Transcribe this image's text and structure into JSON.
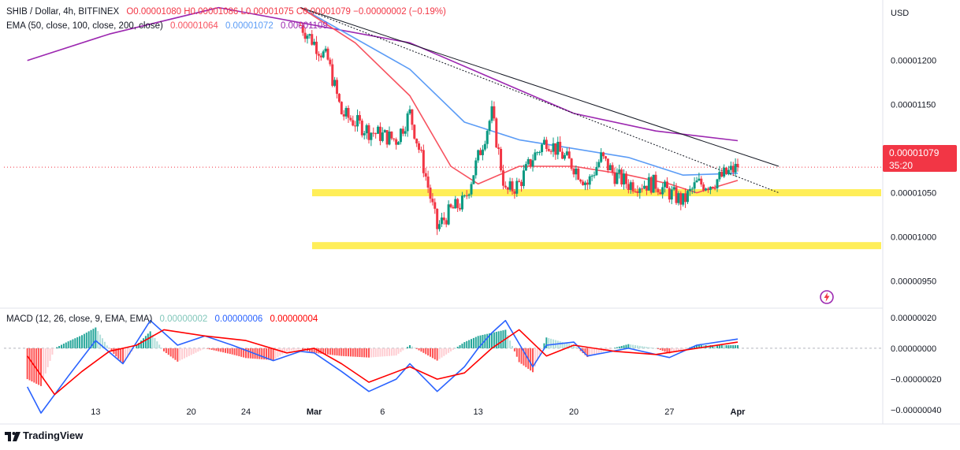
{
  "legend": {
    "symbol": "SHIB / Dollar, 4h, BITFINEX",
    "ohlc": "O0.00001080  H0.00001086  L0.00001075  C0.00001079  −0.00000002 (−0.19%)",
    "ema_label": "EMA (50, close, 100, close, 200, close)",
    "ema50": "0.00001064",
    "ema100": "0.00001072",
    "ema200": "0.00001109",
    "macd_label": "MACD (12, 26, close, 9, EMA, EMA)",
    "macd_hist": "0.00000002",
    "macd_line": "0.00000006",
    "macd_signal": "0.00000004"
  },
  "price_badge": {
    "price": "0.00001079",
    "countdown": "35:20"
  },
  "brand": "TradingView",
  "colors": {
    "up": "#089981",
    "down": "#f23645",
    "ema50": "#f7525f",
    "ema100": "#5b9cf6",
    "ema200": "#9c27b0",
    "macd": "#2962ff",
    "signal": "#ff0000",
    "zone": "#ffeb3b",
    "flash": "#9c27b0"
  },
  "icons": {
    "flash": "flash-icon",
    "logo": "tradingview-logo-icon"
  },
  "chart_data": [
    {
      "type": "candlestick",
      "currency": "USD",
      "y_ticks": [
        "0.00001200",
        "0.00001150",
        "0.00001100",
        "0.00001050",
        "0.00001000",
        "0.00000950"
      ],
      "x_ticks": [
        "13",
        "20",
        "24",
        "Mar",
        "6",
        "13",
        "20",
        "27",
        "Apr"
      ],
      "ylim": [
        9.2e-06,
        1.265e-05
      ],
      "support_zones": [
        1.05e-05,
        9.9e-06
      ],
      "trendlines": [
        {
          "name": "descending resistance",
          "from": [
            "Feb 28",
            1.26e-05
          ],
          "to": [
            "Apr 4",
            1.08e-05
          ]
        },
        {
          "name": "dotted trendline",
          "from": [
            "Feb 28",
            1.26e-05
          ],
          "to": [
            "Apr 4",
            1.05e-05
          ]
        }
      ],
      "close_path": [
        [
          "Feb 28",
          1.24e-05
        ],
        [
          "Mar 2",
          1.2e-05
        ],
        [
          "Mar 3",
          1.14e-05
        ],
        [
          "Mar 5",
          1.12e-05
        ],
        [
          "Mar 7",
          1.11e-05
        ],
        [
          "Mar 8",
          1.14e-05
        ],
        [
          "Mar 9",
          1.08e-05
        ],
        [
          "Mar 10",
          1.01e-05
        ],
        [
          "Mar 11",
          1.03e-05
        ],
        [
          "Mar 12",
          1.04e-05
        ],
        [
          "Mar 13",
          1.09e-05
        ],
        [
          "Mar 14",
          1.14e-05
        ],
        [
          "Mar 15",
          1.05e-05
        ],
        [
          "Mar 16",
          1.06e-05
        ],
        [
          "Mar 17",
          1.09e-05
        ],
        [
          "Mar 18",
          1.11e-05
        ],
        [
          "Mar 20",
          1.08e-05
        ],
        [
          "Mar 21",
          1.06e-05
        ],
        [
          "Mar 22",
          1.09e-05
        ],
        [
          "Mar 23",
          1.07e-05
        ],
        [
          "Mar 24",
          1.06e-05
        ],
        [
          "Mar 26",
          1.06e-05
        ],
        [
          "Mar 27",
          1.05e-05
        ],
        [
          "Mar 28",
          1.04e-05
        ],
        [
          "Mar 29",
          1.06e-05
        ],
        [
          "Mar 30",
          1.06e-05
        ],
        [
          "Mar 31",
          1.07e-05
        ],
        [
          "Apr 1",
          1.079e-05
        ]
      ],
      "ema50": [
        [
          "Feb 28",
          1.26e-05
        ],
        [
          "Mar 4",
          1.22e-05
        ],
        [
          "Mar 8",
          1.16e-05
        ],
        [
          "Mar 11",
          1.08e-05
        ],
        [
          "Mar 13",
          1.06e-05
        ],
        [
          "Mar 16",
          1.08e-05
        ],
        [
          "Mar 20",
          1.08e-05
        ],
        [
          "Mar 24",
          1.07e-05
        ],
        [
          "Mar 27",
          1.06e-05
        ],
        [
          "Mar 29",
          1.05e-05
        ],
        [
          "Apr 1",
          1.064e-05
        ]
      ],
      "ema100": [
        [
          "Feb 28",
          1.26e-05
        ],
        [
          "Mar 8",
          1.19e-05
        ],
        [
          "Mar 12",
          1.13e-05
        ],
        [
          "Mar 16",
          1.11e-05
        ],
        [
          "Mar 20",
          1.1e-05
        ],
        [
          "Mar 24",
          1.09e-05
        ],
        [
          "Mar 28",
          1.07e-05
        ],
        [
          "Apr 1",
          1.072e-05
        ]
      ],
      "ema200": [
        [
          "Feb 8",
          1.2e-05
        ],
        [
          "Feb 14",
          1.23e-05
        ],
        [
          "Feb 22",
          1.26e-05
        ],
        [
          "Mar 8",
          1.22e-05
        ],
        [
          "Mar 14",
          1.18e-05
        ],
        [
          "Mar 20",
          1.14e-05
        ],
        [
          "Mar 26",
          1.12e-05
        ],
        [
          "Apr 1",
          1.109e-05
        ]
      ]
    },
    {
      "type": "macd",
      "y_ticks": [
        "0.00000020",
        "0.00000000",
        "−0.00000020",
        "−0.00000040"
      ],
      "ylim": [
        -4.5e-07,
        2.5e-07
      ],
      "macd": [
        [
          "Feb 8",
          -2.5e-07
        ],
        [
          "Feb 9",
          -4.2e-07
        ],
        [
          "Feb 11",
          -1.8e-07
        ],
        [
          "Feb 13",
          5e-08
        ],
        [
          "Feb 15",
          -1e-07
        ],
        [
          "Feb 17",
          1.8e-07
        ],
        [
          "Feb 19",
          2e-08
        ],
        [
          "Feb 21",
          8e-08
        ],
        [
          "Feb 23",
          2e-08
        ],
        [
          "Feb 26",
          -8e-08
        ],
        [
          "Feb 28",
          -2e-08
        ],
        [
          "Mar 1",
          -3e-08
        ],
        [
          "Mar 3",
          -1.5e-07
        ],
        [
          "Mar 5",
          -2.8e-07
        ],
        [
          "Mar 7",
          -2e-07
        ],
        [
          "Mar 8",
          -1e-07
        ],
        [
          "Mar 10",
          -2.8e-07
        ],
        [
          "Mar 12",
          -1.2e-07
        ],
        [
          "Mar 13",
          0.0
        ],
        [
          "Mar 14",
          1e-07
        ],
        [
          "Mar 15",
          1.8e-07
        ],
        [
          "Mar 17",
          -1.2e-07
        ],
        [
          "Mar 18",
          2e-08
        ],
        [
          "Mar 20",
          4e-08
        ],
        [
          "Mar 21",
          -5e-08
        ],
        [
          "Mar 24",
          0.0
        ],
        [
          "Mar 27",
          -6e-08
        ],
        [
          "Mar 29",
          2e-08
        ],
        [
          "Apr 1",
          6e-08
        ]
      ],
      "signal": [
        [
          "Feb 8",
          -5e-08
        ],
        [
          "Feb 10",
          -3e-07
        ],
        [
          "Feb 12",
          -1.5e-07
        ],
        [
          "Feb 14",
          -2e-08
        ],
        [
          "Feb 16",
          2e-08
        ],
        [
          "Feb 18",
          1.2e-07
        ],
        [
          "Feb 21",
          8e-08
        ],
        [
          "Feb 24",
          5e-08
        ],
        [
          "Feb 27",
          -3e-08
        ],
        [
          "Mar 1",
          0.0
        ],
        [
          "Mar 3",
          -1e-07
        ],
        [
          "Mar 5",
          -2.2e-07
        ],
        [
          "Mar 8",
          -1.2e-07
        ],
        [
          "Mar 10",
          -2e-07
        ],
        [
          "Mar 12",
          -1.6e-07
        ],
        [
          "Mar 14",
          0.0
        ],
        [
          "Mar 16",
          1.2e-07
        ],
        [
          "Mar 18",
          -5e-08
        ],
        [
          "Mar 20",
          2e-08
        ],
        [
          "Mar 23",
          -2e-08
        ],
        [
          "Mar 26",
          -4e-08
        ],
        [
          "Mar 29",
          0.0
        ],
        [
          "Apr 1",
          4e-08
        ]
      ]
    }
  ]
}
